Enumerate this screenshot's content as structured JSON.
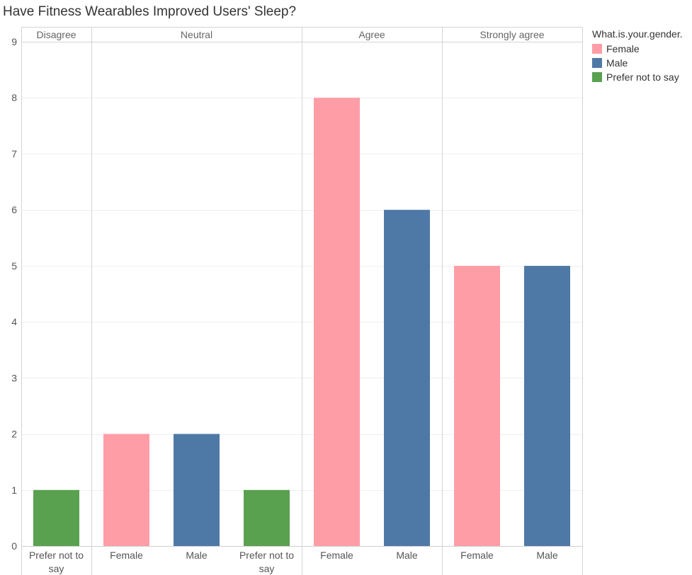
{
  "colors": {
    "Female": "#ff9da7",
    "Male": "#4e79a7",
    "Prefer not to say": "#59a14f"
  },
  "legend": {
    "title": "What.is.your.gender.",
    "items": [
      {
        "label": "Female",
        "color": "#ff9da7"
      },
      {
        "label": "Male",
        "color": "#4e79a7"
      },
      {
        "label": "Prefer not to say",
        "color": "#59a14f"
      }
    ]
  },
  "chart_data": {
    "type": "bar",
    "title": "Have Fitness Wearables Improved Users' Sleep?",
    "xlabel": "",
    "ylabel": "",
    "ylim": [
      0,
      9
    ],
    "yticks": [
      0,
      1,
      2,
      3,
      4,
      5,
      6,
      7,
      8,
      9
    ],
    "grid": true,
    "legend_position": "right",
    "panels": [
      {
        "name": "Disagree",
        "bars": [
          {
            "category": "Prefer not to say",
            "value": 1
          }
        ]
      },
      {
        "name": "Neutral",
        "bars": [
          {
            "category": "Female",
            "value": 2
          },
          {
            "category": "Male",
            "value": 2
          },
          {
            "category": "Prefer not to say",
            "value": 1
          }
        ]
      },
      {
        "name": "Agree",
        "bars": [
          {
            "category": "Female",
            "value": 8
          },
          {
            "category": "Male",
            "value": 6
          }
        ]
      },
      {
        "name": "Strongly agree",
        "bars": [
          {
            "category": "Female",
            "value": 5
          },
          {
            "category": "Male",
            "value": 5
          }
        ]
      }
    ]
  }
}
